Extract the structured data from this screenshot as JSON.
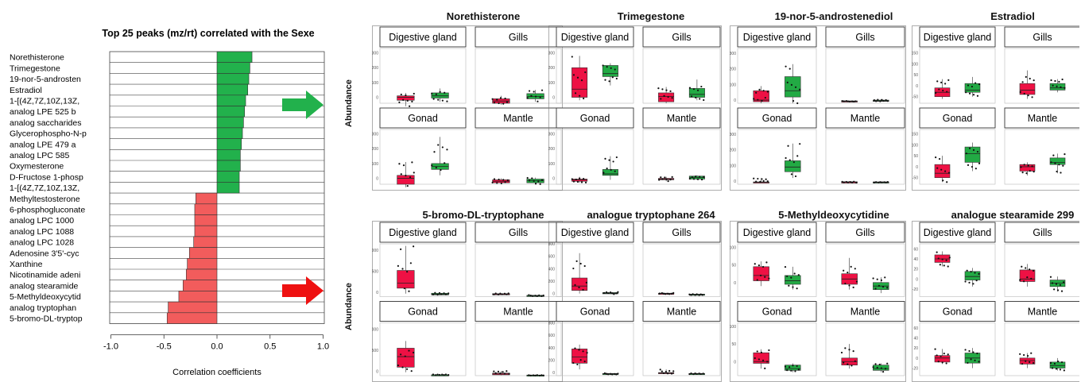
{
  "bar_chart": {
    "title": "Top 25 peaks (mz/rt) correlated with the Sexe",
    "xlabel": "Correlation coefficients",
    "x_ticks": [
      "-1.0",
      "-0.5",
      "0.0",
      "0.5",
      "1.0"
    ]
  },
  "chart_data": [
    {
      "type": "bar",
      "orientation": "horizontal",
      "title": "Top 25 peaks (mz/rt) correlated with the Sexe",
      "xlabel": "Correlation coefficients",
      "xlim": [
        -1.0,
        1.0
      ],
      "categories": [
        "Norethisterone",
        "Trimegestone",
        "19-nor-5-androsten",
        "Estradiol",
        "1-[(4Z,7Z,10Z,13Z,",
        "analog LPE 525 b",
        "analog saccharides",
        "Glycerophospho-N-p",
        "analog LPE 479 a",
        "analog LPC 585",
        "Oxymesterone",
        "D-Fructose 1-phosp",
        "1-[(4Z,7Z,10Z,13Z,",
        "Methyltestosterone",
        "6-phosphogluconate",
        "analog LPC 1000",
        "analog LPC 1088",
        "analog LPC 1028",
        "Adenosine 3'5'-cyc",
        "Xanthine",
        "Nicotinamide adeni",
        "analog stearamide",
        "5-Methyldeoxycytid",
        "analog tryptophan",
        "5-bromo-DL-tryptop"
      ],
      "values": [
        0.33,
        0.31,
        0.3,
        0.29,
        0.27,
        0.26,
        0.25,
        0.24,
        0.23,
        0.22,
        0.22,
        0.21,
        0.21,
        -0.2,
        -0.21,
        -0.21,
        -0.21,
        -0.22,
        -0.26,
        -0.28,
        -0.29,
        -0.32,
        -0.36,
        -0.46,
        -0.47
      ],
      "colors": {
        "positive": "#22b14c",
        "negative": "#f25c5c"
      }
    }
  ],
  "colors": {
    "red": "#ee1144",
    "green": "#22aa44",
    "arrow_green": "#22b14c",
    "arrow_red": "#ee1111"
  },
  "boxplots": [
    {
      "title": "Norethisterone",
      "panels": [
        {
          "label": "Digestive gland",
          "ticks": [
            "300",
            "200",
            "100",
            "0"
          ],
          "ymin": -40,
          "ymax": 330,
          "red": [
            -60,
            -20,
            0,
            10,
            30
          ],
          "green": [
            -30,
            -5,
            10,
            30,
            60
          ]
        },
        {
          "label": "Gills",
          "ticks": [],
          "ymin": -40,
          "ymax": 330,
          "red": [
            -50,
            -40,
            -25,
            -10,
            10
          ],
          "green": [
            -30,
            -10,
            5,
            25,
            50
          ]
        },
        {
          "label": "Gonad",
          "ticks": [
            "300",
            "200",
            "100",
            "0"
          ],
          "ymin": -40,
          "ymax": 330,
          "red": [
            -60,
            -40,
            0,
            20,
            110
          ],
          "green": [
            20,
            60,
            80,
            100,
            280
          ]
        },
        {
          "label": "Mantle",
          "ticks": [],
          "ymin": -40,
          "ymax": 330,
          "red": [
            -40,
            -30,
            -20,
            -10,
            0
          ],
          "green": [
            -40,
            -30,
            -15,
            -5,
            5
          ]
        }
      ]
    },
    {
      "title": "Trimegestone",
      "panels": [
        {
          "label": "Digestive gland",
          "ticks": [
            "300",
            "200",
            "100",
            "0"
          ],
          "ymin": -40,
          "ymax": 330,
          "red": [
            -20,
            0,
            55,
            200,
            280
          ],
          "green": [
            80,
            140,
            160,
            215,
            230
          ]
        },
        {
          "label": "Gills",
          "ticks": [],
          "ymin": -40,
          "ymax": 330,
          "red": [
            -40,
            -30,
            5,
            30,
            70
          ],
          "green": [
            -20,
            0,
            20,
            60,
            120
          ]
        },
        {
          "label": "Gonad",
          "ticks": [
            "300",
            "200",
            "100",
            "0"
          ],
          "ymin": -40,
          "ymax": 330,
          "red": [
            -30,
            -20,
            -10,
            -5,
            10
          ],
          "green": [
            -10,
            20,
            30,
            60,
            150
          ]
        },
        {
          "label": "Mantle",
          "ticks": [],
          "ymin": -40,
          "ymax": 330,
          "red": [
            -20,
            -10,
            -5,
            0,
            10
          ],
          "green": [
            -10,
            -5,
            5,
            15,
            20
          ]
        }
      ]
    },
    {
      "title": "19-nor-5-androstenediol",
      "panels": [
        {
          "label": "Digestive gland",
          "ticks": [
            "300",
            "200",
            "100",
            "0"
          ],
          "ymin": -20,
          "ymax": 330,
          "red": [
            -20,
            -10,
            0,
            60,
            90
          ],
          "green": [
            -20,
            20,
            60,
            150,
            230
          ]
        },
        {
          "label": "Gills",
          "ticks": [],
          "ymin": -20,
          "ymax": 330,
          "red": [
            -10,
            -10,
            -8,
            -5,
            -5
          ],
          "green": [
            -10,
            -8,
            -5,
            0,
            5
          ]
        },
        {
          "label": "Gonad",
          "ticks": [
            "300",
            "200",
            "100",
            "0"
          ],
          "ymin": -20,
          "ymax": 330,
          "red": [
            -10,
            -10,
            -8,
            -5,
            20
          ],
          "green": [
            20,
            60,
            90,
            130,
            240
          ]
        },
        {
          "label": "Mantle",
          "ticks": [],
          "ymin": -20,
          "ymax": 330,
          "red": [
            -10,
            -8,
            -5,
            -5,
            0
          ],
          "green": [
            -10,
            -8,
            -8,
            -5,
            -5
          ]
        }
      ]
    },
    {
      "title": "Estradiol",
      "panels": [
        {
          "label": "Digestive gland",
          "ticks": [
            "150",
            "100",
            "50",
            "0",
            "-50"
          ],
          "ymin": -80,
          "ymax": 170,
          "red": [
            -60,
            -50,
            -30,
            -10,
            30
          ],
          "green": [
            -50,
            -30,
            -20,
            10,
            40
          ]
        },
        {
          "label": "Gills",
          "ticks": [],
          "ymin": -80,
          "ymax": 170,
          "red": [
            -60,
            -40,
            -20,
            10,
            70
          ],
          "green": [
            -30,
            -20,
            -10,
            10,
            30
          ]
        },
        {
          "label": "Gonad",
          "ticks": [
            "150",
            "100",
            "50",
            "0",
            "-50"
          ],
          "ymin": -80,
          "ymax": 170,
          "red": [
            -70,
            -50,
            -30,
            10,
            50
          ],
          "green": [
            -20,
            20,
            60,
            90,
            110
          ]
        },
        {
          "label": "Mantle",
          "ticks": [],
          "ymin": -80,
          "ymax": 170,
          "red": [
            -40,
            -20,
            0,
            10,
            20
          ],
          "green": [
            -30,
            10,
            20,
            40,
            60
          ]
        }
      ]
    },
    {
      "title": "5-bromo-DL-tryptophane",
      "panels": [
        {
          "label": "Digestive gland",
          "ticks": [
            "1000",
            "500",
            "0"
          ],
          "ymin": -100,
          "ymax": 1150,
          "red": [
            -30,
            100,
            220,
            520,
            1100
          ],
          "green": [
            -70,
            -60,
            -40,
            -20,
            0
          ]
        },
        {
          "label": "Gills",
          "ticks": [],
          "ymin": -100,
          "ymax": 1150,
          "red": [
            -60,
            -50,
            -40,
            -30,
            -20
          ],
          "green": [
            -90,
            -80,
            -75,
            -70,
            -60
          ]
        },
        {
          "label": "Gonad",
          "ticks": [
            "1000",
            "500",
            "0"
          ],
          "ymin": -100,
          "ymax": 1150,
          "red": [
            -20,
            100,
            350,
            550,
            720
          ],
          "green": [
            -90,
            -90,
            -85,
            -80,
            -70
          ]
        },
        {
          "label": "Mantle",
          "ticks": [],
          "ymin": -100,
          "ymax": 1150,
          "red": [
            -90,
            -80,
            -60,
            -40,
            10
          ],
          "green": [
            -100,
            -95,
            -90,
            -85,
            -80
          ]
        }
      ]
    },
    {
      "title": "analogue tryptophane 264",
      "panels": [
        {
          "label": "Digestive gland",
          "ticks": [
            "800",
            "600",
            "400",
            "200",
            "0"
          ],
          "ymin": -50,
          "ymax": 800,
          "red": [
            0,
            50,
            120,
            250,
            650
          ],
          "green": [
            -10,
            -5,
            5,
            15,
            25
          ]
        },
        {
          "label": "Gills",
          "ticks": [],
          "ymin": -50,
          "ymax": 800,
          "red": [
            -10,
            -5,
            0,
            5,
            10
          ],
          "green": [
            -30,
            -20,
            -15,
            -10,
            -5
          ]
        },
        {
          "label": "Gonad",
          "ticks": [
            "800",
            "600",
            "400",
            "200",
            "0"
          ],
          "ymin": -50,
          "ymax": 800,
          "red": [
            50,
            150,
            250,
            380,
            450
          ],
          "green": [
            -30,
            -25,
            -20,
            -15,
            -10
          ]
        },
        {
          "label": "Mantle",
          "ticks": [],
          "ymin": -50,
          "ymax": 800,
          "red": [
            -20,
            -15,
            -10,
            0,
            50
          ],
          "green": [
            -30,
            -25,
            -20,
            -15,
            -10
          ]
        }
      ]
    },
    {
      "title": "5-Methyldeoxycytidine",
      "panels": [
        {
          "label": "Digestive gland",
          "ticks": [
            "100",
            "50",
            "0"
          ],
          "ymin": -40,
          "ymax": 110,
          "red": [
            -10,
            5,
            20,
            45,
            60
          ],
          "green": [
            -20,
            -5,
            5,
            20,
            45
          ]
        },
        {
          "label": "Gills",
          "ticks": [],
          "ymin": -40,
          "ymax": 110,
          "red": [
            -20,
            -5,
            10,
            25,
            70
          ],
          "green": [
            -30,
            -20,
            -10,
            0,
            15
          ]
        },
        {
          "label": "Gonad",
          "ticks": [
            "100",
            "50",
            "0"
          ],
          "ymin": -40,
          "ymax": 110,
          "red": [
            -20,
            -5,
            0,
            25,
            35
          ],
          "green": [
            -30,
            -25,
            -20,
            -10,
            -5
          ]
        },
        {
          "label": "Mantle",
          "ticks": [],
          "ymin": -40,
          "ymax": 110,
          "red": [
            -20,
            -10,
            0,
            10,
            50
          ],
          "green": [
            -30,
            -25,
            -20,
            -10,
            -5
          ]
        }
      ]
    },
    {
      "title": "analogue stearamide 299",
      "panels": [
        {
          "label": "Digestive gland",
          "ticks": [
            "60",
            "40",
            "20",
            "0",
            "-20"
          ],
          "ymin": -35,
          "ymax": 70,
          "red": [
            25,
            33,
            40,
            48,
            55
          ],
          "green": [
            -15,
            -2,
            5,
            15,
            22
          ]
        },
        {
          "label": "Gills",
          "ticks": [],
          "ymin": -35,
          "ymax": 70,
          "red": [
            -15,
            -5,
            0,
            18,
            30
          ],
          "green": [
            -25,
            -15,
            -8,
            -2,
            5
          ]
        },
        {
          "label": "Gonad",
          "ticks": [
            "60",
            "40",
            "20",
            "0",
            "-20"
          ],
          "ymin": -35,
          "ymax": 70,
          "red": [
            -12,
            -8,
            0,
            5,
            18
          ],
          "green": [
            -20,
            -10,
            0,
            10,
            20
          ]
        },
        {
          "label": "Mantle",
          "ticks": [],
          "ymin": -35,
          "ymax": 70,
          "red": [
            -20,
            -12,
            -5,
            0,
            10
          ],
          "green": [
            -25,
            -20,
            -15,
            -8,
            0
          ]
        }
      ]
    }
  ],
  "abundance_label": "Abundance"
}
